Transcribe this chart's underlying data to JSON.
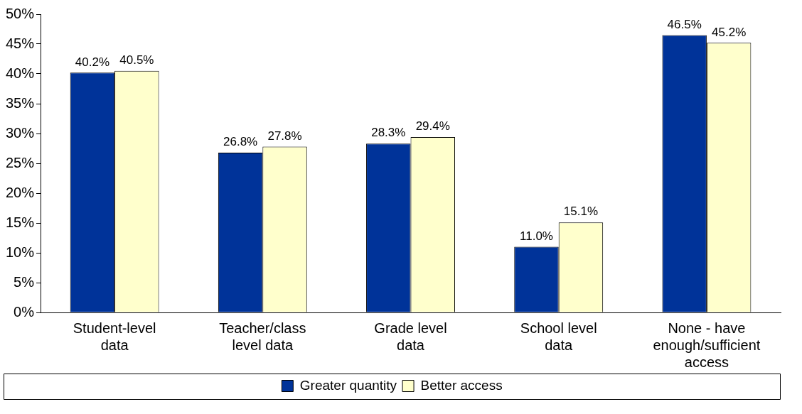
{
  "chart_data": {
    "type": "bar",
    "categories": [
      "Student-level data",
      "Teacher/class level data",
      "Grade level data",
      "School level data",
      "None - have enough/sufficient access"
    ],
    "series": [
      {
        "name": "Greater quantity",
        "color": "#003399",
        "values": [
          40.2,
          26.8,
          28.3,
          11.0,
          46.5
        ],
        "value_labels": [
          "40.2%",
          "26.8%",
          "28.3%",
          "11.0%",
          "46.5%"
        ]
      },
      {
        "name": "Better access",
        "color": "#ffffcc",
        "values": [
          40.5,
          27.8,
          29.4,
          15.1,
          45.2
        ],
        "value_labels": [
          "40.5%",
          "27.8%",
          "29.4%",
          "15.1%",
          "45.2%"
        ]
      }
    ],
    "ylim": [
      0,
      50
    ],
    "yticks": [
      {
        "value": 0,
        "label": "0%"
      },
      {
        "value": 5,
        "label": "5%"
      },
      {
        "value": 10,
        "label": "10%"
      },
      {
        "value": 15,
        "label": "15%"
      },
      {
        "value": 20,
        "label": "20%"
      },
      {
        "value": 25,
        "label": "25%"
      },
      {
        "value": 30,
        "label": "30%"
      },
      {
        "value": 35,
        "label": "35%"
      },
      {
        "value": 40,
        "label": "40%"
      },
      {
        "value": 45,
        "label": "45%"
      },
      {
        "value": 50,
        "label": "50%"
      }
    ],
    "grid": false,
    "legend": "bottom"
  }
}
